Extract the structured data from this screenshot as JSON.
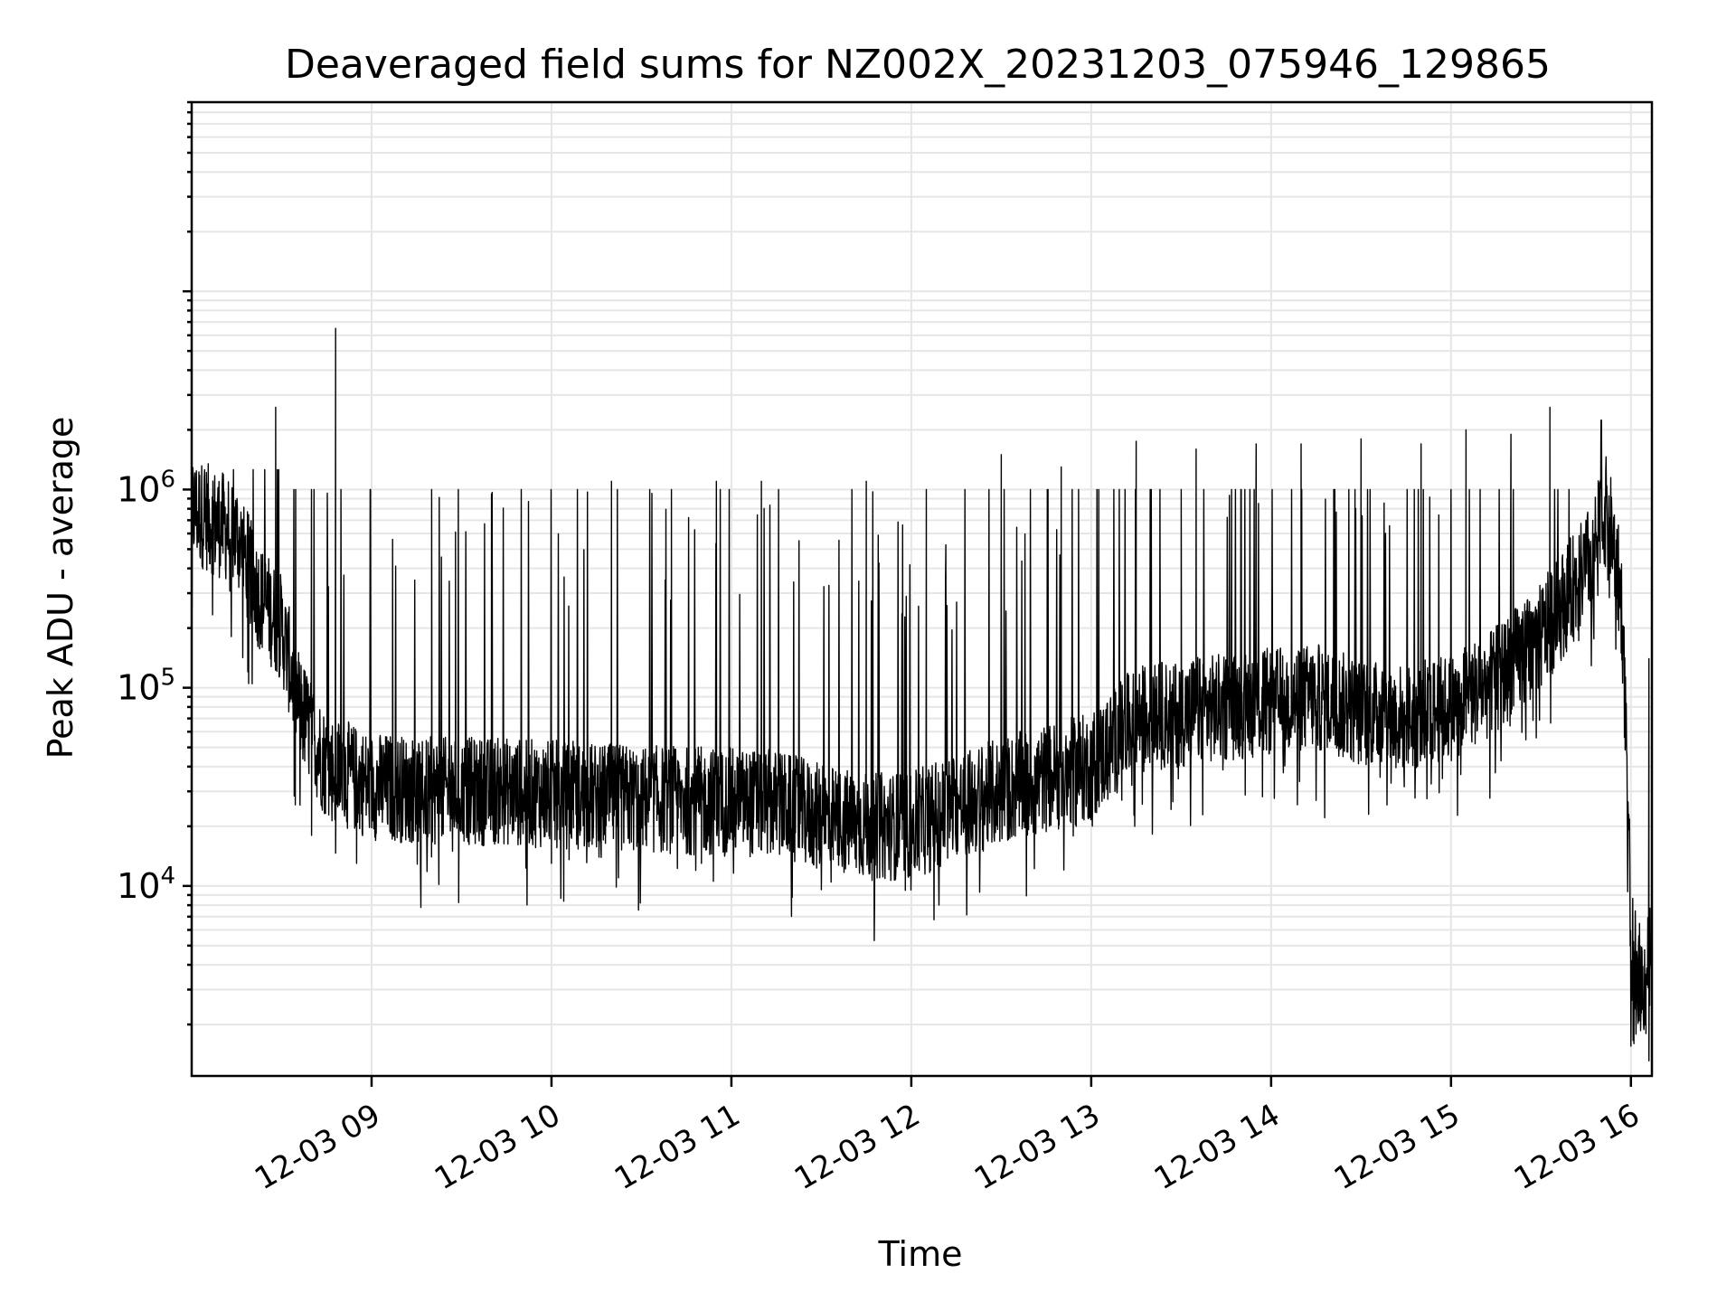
{
  "chart_data": {
    "type": "line",
    "title": "Deaveraged field sums for NZ002X_20231203_075946_129865",
    "xlabel": "Time",
    "ylabel": "Peak ADU - average",
    "yscale": "log",
    "ylim": [
      1100,
      90000000
    ],
    "xlim": [
      "2023-12-03 08:00",
      "2023-12-03 16:07"
    ],
    "grid": true,
    "x_ticks": [
      {
        "time": "2023-12-03 09:00",
        "label": "12-03 09"
      },
      {
        "time": "2023-12-03 10:00",
        "label": "12-03 10"
      },
      {
        "time": "2023-12-03 11:00",
        "label": "12-03 11"
      },
      {
        "time": "2023-12-03 12:00",
        "label": "12-03 12"
      },
      {
        "time": "2023-12-03 13:00",
        "label": "12-03 13"
      },
      {
        "time": "2023-12-03 14:00",
        "label": "12-03 14"
      },
      {
        "time": "2023-12-03 15:00",
        "label": "12-03 15"
      },
      {
        "time": "2023-12-03 16:00",
        "label": "12-03 16"
      }
    ],
    "y_ticks": [
      {
        "value": 10000,
        "base": "10",
        "exp": "4"
      },
      {
        "value": 100000,
        "base": "10",
        "exp": "5"
      },
      {
        "value": 1000000,
        "base": "10",
        "exp": "6"
      }
    ],
    "series": [
      {
        "color": "#000000",
        "baseline": {
          "x": [
            "2023-12-03 08:00",
            "2023-12-03 08:07",
            "2023-12-03 08:15",
            "2023-12-03 08:22",
            "2023-12-03 08:30",
            "2023-12-03 08:36",
            "2023-12-03 08:45",
            "2023-12-03 09:00",
            "2023-12-03 09:20",
            "2023-12-03 09:45",
            "2023-12-03 10:15",
            "2023-12-03 10:45",
            "2023-12-03 11:15",
            "2023-12-03 11:30",
            "2023-12-03 11:45",
            "2023-12-03 12:00",
            "2023-12-03 12:15",
            "2023-12-03 12:30",
            "2023-12-03 12:45",
            "2023-12-03 13:00",
            "2023-12-03 13:15",
            "2023-12-03 13:45",
            "2023-12-03 14:15",
            "2023-12-03 14:30",
            "2023-12-03 14:45",
            "2023-12-03 15:00",
            "2023-12-03 15:15",
            "2023-12-03 15:30",
            "2023-12-03 15:45",
            "2023-12-03 15:52",
            "2023-12-03 15:55",
            "2023-12-03 15:57",
            "2023-12-03 15:59",
            "2023-12-03 16:00",
            "2023-12-03 16:02",
            "2023-12-03 16:04",
            "2023-12-03 16:06"
          ],
          "y": [
            800000,
            700000,
            600000,
            300000,
            200000,
            80000,
            40000,
            32000,
            30000,
            30000,
            28000,
            27000,
            26000,
            22000,
            20000,
            20000,
            25000,
            30000,
            35000,
            40000,
            70000,
            80000,
            90000,
            75000,
            70000,
            80000,
            110000,
            180000,
            400000,
            800000,
            450000,
            250000,
            30000,
            5000,
            4000,
            3000,
            4500
          ]
        },
        "spikes": [
          {
            "x": "2023-12-03 08:28",
            "y": 2600000
          },
          {
            "x": "2023-12-03 08:48",
            "y": 6500000
          },
          {
            "x": "2023-12-03 09:07",
            "y": 560000
          },
          {
            "x": "2023-12-03 09:28",
            "y": 610000
          },
          {
            "x": "2023-12-03 09:40",
            "y": 950000
          },
          {
            "x": "2023-12-03 10:00",
            "y": 950000
          },
          {
            "x": "2023-12-03 10:20",
            "y": 1100000
          },
          {
            "x": "2023-12-03 10:40",
            "y": 1000000
          },
          {
            "x": "2023-12-03 10:55",
            "y": 1100000
          },
          {
            "x": "2023-12-03 11:10",
            "y": 1100000
          },
          {
            "x": "2023-12-03 11:30",
            "y": 1000000
          },
          {
            "x": "2023-12-03 11:45",
            "y": 1100000
          },
          {
            "x": "2023-12-03 12:05",
            "y": 1000000
          },
          {
            "x": "2023-12-03 12:15",
            "y": 1300000
          },
          {
            "x": "2023-12-03 12:30",
            "y": 1500000
          },
          {
            "x": "2023-12-03 12:50",
            "y": 1300000
          },
          {
            "x": "2023-12-03 13:15",
            "y": 1750000
          },
          {
            "x": "2023-12-03 13:35",
            "y": 1600000
          },
          {
            "x": "2023-12-03 13:55",
            "y": 1700000
          },
          {
            "x": "2023-12-03 14:10",
            "y": 1700000
          },
          {
            "x": "2023-12-03 14:30",
            "y": 1800000
          },
          {
            "x": "2023-12-03 14:50",
            "y": 1700000
          },
          {
            "x": "2023-12-03 15:05",
            "y": 2000000
          },
          {
            "x": "2023-12-03 15:20",
            "y": 1900000
          },
          {
            "x": "2023-12-03 15:33",
            "y": 2600000
          },
          {
            "x": "2023-12-03 15:50",
            "y": 1900000
          },
          {
            "x": "2023-12-03 16:06",
            "y": 140000
          }
        ],
        "minima": [
          {
            "x": "2023-12-03 08:19",
            "y": 105000
          },
          {
            "x": "2023-12-03 08:40",
            "y": 18000
          },
          {
            "x": "2023-12-03 08:55",
            "y": 13000
          },
          {
            "x": "2023-12-03 09:20",
            "y": 14000
          },
          {
            "x": "2023-12-03 10:00",
            "y": 13000
          },
          {
            "x": "2023-12-03 10:50",
            "y": 13000
          },
          {
            "x": "2023-12-03 11:30",
            "y": 10500
          },
          {
            "x": "2023-12-03 11:58",
            "y": 9500
          },
          {
            "x": "2023-12-03 12:15",
            "y": 15000
          },
          {
            "x": "2023-12-03 12:55",
            "y": 20000
          },
          {
            "x": "2023-12-03 13:30",
            "y": 42000
          },
          {
            "x": "2023-12-03 14:40",
            "y": 33000
          },
          {
            "x": "2023-12-03 16:01",
            "y": 1600
          },
          {
            "x": "2023-12-03 16:05",
            "y": 1800
          }
        ]
      }
    ]
  }
}
